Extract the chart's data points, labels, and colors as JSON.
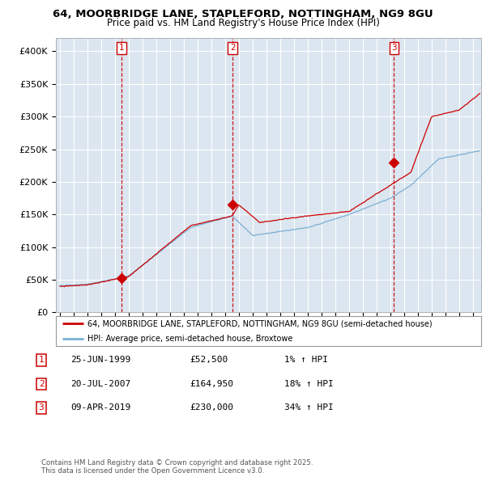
{
  "title_line1": "64, MOORBRIDGE LANE, STAPLEFORD, NOTTINGHAM, NG9 8GU",
  "title_line2": "Price paid vs. HM Land Registry's House Price Index (HPI)",
  "ylim": [
    0,
    420000
  ],
  "yticks": [
    0,
    50000,
    100000,
    150000,
    200000,
    250000,
    300000,
    350000,
    400000
  ],
  "ytick_labels": [
    "£0",
    "£50K",
    "£100K",
    "£150K",
    "£200K",
    "£250K",
    "£300K",
    "£350K",
    "£400K"
  ],
  "background_color": "#ffffff",
  "plot_bg_color": "#dce6f0",
  "grid_color": "#ffffff",
  "property_color": "#cc0000",
  "hpi_color": "#7bafd4",
  "sale_marker_color": "#cc0000",
  "vline_color": "#cc0000",
  "sales": [
    {
      "date_num": 1999.49,
      "price": 52500,
      "label": "1"
    },
    {
      "date_num": 2007.55,
      "price": 164950,
      "label": "2"
    },
    {
      "date_num": 2019.27,
      "price": 230000,
      "label": "3"
    }
  ],
  "legend_property": "64, MOORBRIDGE LANE, STAPLEFORD, NOTTINGHAM, NG9 8GU (semi-detached house)",
  "legend_hpi": "HPI: Average price, semi-detached house, Broxtowe",
  "table_rows": [
    {
      "num": "1",
      "date": "25-JUN-1999",
      "price": "£52,500",
      "change": "1% ↑ HPI"
    },
    {
      "num": "2",
      "date": "20-JUL-2007",
      "price": "£164,950",
      "change": "18% ↑ HPI"
    },
    {
      "num": "3",
      "date": "09-APR-2019",
      "price": "£230,000",
      "change": "34% ↑ HPI"
    }
  ],
  "footer": "Contains HM Land Registry data © Crown copyright and database right 2025.\nThis data is licensed under the Open Government Licence v3.0."
}
